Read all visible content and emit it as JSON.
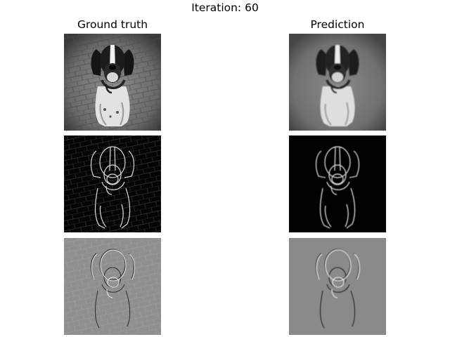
{
  "figure": {
    "title": "Iteration: 60",
    "columns": [
      {
        "title": "Ground truth"
      },
      {
        "title": "Prediction"
      }
    ],
    "rows": [
      {
        "kind": "grayscale-photo"
      },
      {
        "kind": "edge-magnitude"
      },
      {
        "kind": "laplacian"
      }
    ]
  }
}
